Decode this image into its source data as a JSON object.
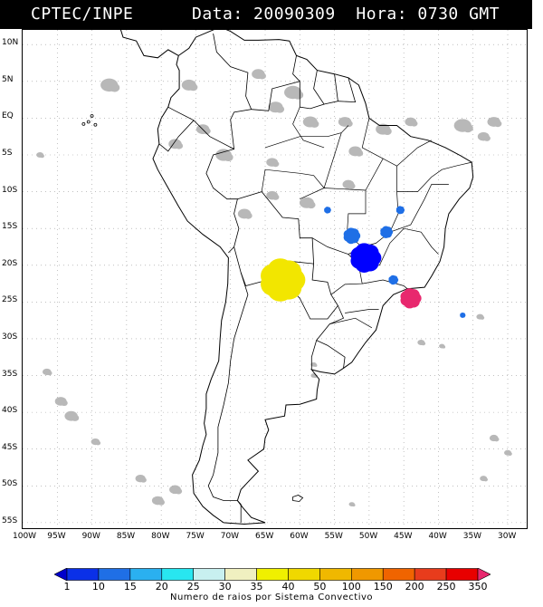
{
  "header": {
    "agency": "CPTEC/INPE",
    "datetime": "Data: 20090309  Hora: 0730 GMT"
  },
  "map": {
    "lat_labels": [
      "10N",
      "5N",
      "EQ",
      "5S",
      "10S",
      "15S",
      "20S",
      "25S",
      "30S",
      "35S",
      "40S",
      "45S",
      "50S",
      "55S"
    ],
    "lon_labels": [
      "100W",
      "95W",
      "90W",
      "85W",
      "80W",
      "75W",
      "70W",
      "65W",
      "60W",
      "55W",
      "50W",
      "45W",
      "40W",
      "35W",
      "30W"
    ],
    "lat_range": [
      -56,
      12
    ],
    "lon_range": [
      -100,
      -27
    ],
    "grid": true,
    "colors": {
      "coast": "#000000",
      "cloud": "#b8b8b8",
      "grid": "#9a9a9a"
    },
    "cells": [
      {
        "lon": -62.5,
        "lat": -22.0,
        "r": 3.2,
        "color": "#f2e600",
        "note": "yellow cluster"
      },
      {
        "lon": -50.5,
        "lat": -19.0,
        "r": 2.2,
        "color": "#0000ff",
        "note": "blue cluster"
      },
      {
        "lon": -52.5,
        "lat": -16.0,
        "r": 1.2,
        "color": "#1f6fe6",
        "note": "light blue cluster"
      },
      {
        "lon": -47.5,
        "lat": -15.5,
        "r": 0.9,
        "color": "#1f6fe6"
      },
      {
        "lon": -45.5,
        "lat": -12.5,
        "r": 0.6,
        "color": "#1f6fe6"
      },
      {
        "lon": -46.5,
        "lat": -22.0,
        "r": 0.7,
        "color": "#1f6fe6"
      },
      {
        "lon": -44.0,
        "lat": -24.5,
        "r": 1.5,
        "color": "#e8286e",
        "note": "magenta cluster"
      },
      {
        "lon": -56.0,
        "lat": -12.5,
        "r": 0.5,
        "color": "#1f6fe6"
      },
      {
        "lon": -36.5,
        "lat": -26.8,
        "r": 0.4,
        "color": "#1f6fe6"
      }
    ]
  },
  "colorbar": {
    "ticks": [
      "1",
      "10",
      "15",
      "20",
      "25",
      "30",
      "35",
      "40",
      "50",
      "100",
      "150",
      "200",
      "250",
      "350"
    ],
    "colors": [
      "#0000cc",
      "#0a30e8",
      "#1f6fe6",
      "#2ab0f0",
      "#28e6f0",
      "#c8f0f0",
      "#f0f0c0",
      "#f0f000",
      "#f0d800",
      "#f0b800",
      "#f09800",
      "#f06400",
      "#e83c1c",
      "#e80000",
      "#e8286e"
    ],
    "caption": "Numero de raios por Sistema Convectivo"
  }
}
